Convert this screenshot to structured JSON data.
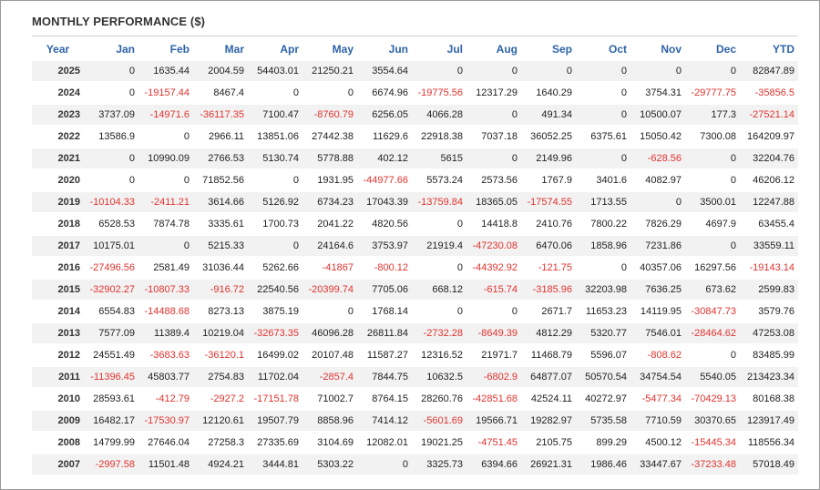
{
  "title": "MONTHLY PERFORMANCE ($)",
  "columns": [
    "Year",
    "Jan",
    "Feb",
    "Mar",
    "Apr",
    "May",
    "Jun",
    "Jul",
    "Aug",
    "Sep",
    "Oct",
    "Nov",
    "Dec",
    "YTD"
  ],
  "rows": [
    {
      "year": "2025",
      "values": [
        "0",
        "1635.44",
        "2004.59",
        "54403.01",
        "21250.21",
        "3554.64",
        "0",
        "0",
        "0",
        "0",
        "0",
        "0",
        "82847.89"
      ]
    },
    {
      "year": "2024",
      "values": [
        "0",
        "-19157.44",
        "8467.4",
        "0",
        "0",
        "6674.96",
        "-19775.56",
        "12317.29",
        "1640.29",
        "0",
        "3754.31",
        "-29777.75",
        "-35856.5"
      ]
    },
    {
      "year": "2023",
      "values": [
        "3737.09",
        "-14971.6",
        "-36117.35",
        "7100.47",
        "-8760.79",
        "6256.05",
        "4066.28",
        "0",
        "491.34",
        "0",
        "10500.07",
        "177.3",
        "-27521.14"
      ]
    },
    {
      "year": "2022",
      "values": [
        "13586.9",
        "0",
        "2966.11",
        "13851.06",
        "27442.38",
        "11629.6",
        "22918.38",
        "7037.18",
        "36052.25",
        "6375.61",
        "15050.42",
        "7300.08",
        "164209.97"
      ]
    },
    {
      "year": "2021",
      "values": [
        "0",
        "10990.09",
        "2766.53",
        "5130.74",
        "5778.88",
        "402.12",
        "5615",
        "0",
        "2149.96",
        "0",
        "-628.56",
        "0",
        "32204.76"
      ]
    },
    {
      "year": "2020",
      "values": [
        "0",
        "0",
        "71852.56",
        "0",
        "1931.95",
        "-44977.66",
        "5573.24",
        "2573.56",
        "1767.9",
        "3401.6",
        "4082.97",
        "0",
        "46206.12"
      ]
    },
    {
      "year": "2019",
      "values": [
        "-10104.33",
        "-2411.21",
        "3614.66",
        "5126.92",
        "6734.23",
        "17043.39",
        "-13759.84",
        "18365.05",
        "-17574.55",
        "1713.55",
        "0",
        "3500.01",
        "12247.88"
      ]
    },
    {
      "year": "2018",
      "values": [
        "6528.53",
        "7874.78",
        "3335.61",
        "1700.73",
        "2041.22",
        "4820.56",
        "0",
        "14418.8",
        "2410.76",
        "7800.22",
        "7826.29",
        "4697.9",
        "63455.4"
      ]
    },
    {
      "year": "2017",
      "values": [
        "10175.01",
        "0",
        "5215.33",
        "0",
        "24164.6",
        "3753.97",
        "21919.4",
        "-47230.08",
        "6470.06",
        "1858.96",
        "7231.86",
        "0",
        "33559.11"
      ]
    },
    {
      "year": "2016",
      "values": [
        "-27496.56",
        "2581.49",
        "31036.44",
        "5262.66",
        "-41867",
        "-800.12",
        "0",
        "-44392.92",
        "-121.75",
        "0",
        "40357.06",
        "16297.56",
        "-19143.14"
      ]
    },
    {
      "year": "2015",
      "values": [
        "-32902.27",
        "-10807.33",
        "-916.72",
        "22540.56",
        "-20399.74",
        "7705.06",
        "668.12",
        "-615.74",
        "-3185.96",
        "32203.98",
        "7636.25",
        "673.62",
        "2599.83"
      ]
    },
    {
      "year": "2014",
      "values": [
        "6554.83",
        "-14488.68",
        "8273.13",
        "3875.19",
        "0",
        "1768.14",
        "0",
        "0",
        "2671.7",
        "11653.23",
        "14119.95",
        "-30847.73",
        "3579.76"
      ]
    },
    {
      "year": "2013",
      "values": [
        "7577.09",
        "11389.4",
        "10219.04",
        "-32673.35",
        "46096.28",
        "26811.84",
        "-2732.28",
        "-8649.39",
        "4812.29",
        "5320.77",
        "7546.01",
        "-28464.62",
        "47253.08"
      ]
    },
    {
      "year": "2012",
      "values": [
        "24551.49",
        "-3683.63",
        "-36120.1",
        "16499.02",
        "20107.48",
        "11587.27",
        "12316.52",
        "21971.7",
        "11468.79",
        "5596.07",
        "-808.62",
        "0",
        "83485.99"
      ]
    },
    {
      "year": "2011",
      "values": [
        "-11396.45",
        "45803.77",
        "2754.83",
        "11702.04",
        "-2857.4",
        "7844.75",
        "10632.5",
        "-6802.9",
        "64877.07",
        "50570.54",
        "34754.54",
        "5540.05",
        "213423.34"
      ]
    },
    {
      "year": "2010",
      "values": [
        "28593.61",
        "-412.79",
        "-2927.2",
        "-17151.78",
        "71002.7",
        "8764.15",
        "28260.76",
        "-42851.68",
        "42524.11",
        "40272.97",
        "-5477.34",
        "-70429.13",
        "80168.38"
      ]
    },
    {
      "year": "2009",
      "values": [
        "16482.17",
        "-17530.97",
        "12120.61",
        "19507.79",
        "8858.96",
        "7414.12",
        "-5601.69",
        "19566.71",
        "19282.97",
        "5735.58",
        "7710.59",
        "30370.65",
        "123917.49"
      ]
    },
    {
      "year": "2008",
      "values": [
        "14799.99",
        "27646.04",
        "27258.3",
        "27335.69",
        "3104.69",
        "12082.01",
        "19021.25",
        "-4751.45",
        "2105.75",
        "899.29",
        "4500.12",
        "-15445.34",
        "118556.34"
      ]
    },
    {
      "year": "2007",
      "values": [
        "-2997.58",
        "11501.48",
        "4924.21",
        "3444.81",
        "5303.22",
        "0",
        "3325.73",
        "6394.66",
        "26921.31",
        "1986.46",
        "33447.67",
        "-37233.48",
        "57018.49"
      ]
    }
  ],
  "colors": {
    "header": "#2e63a8",
    "negative": "#e0332f",
    "row_shade": "#f2f2f2"
  }
}
